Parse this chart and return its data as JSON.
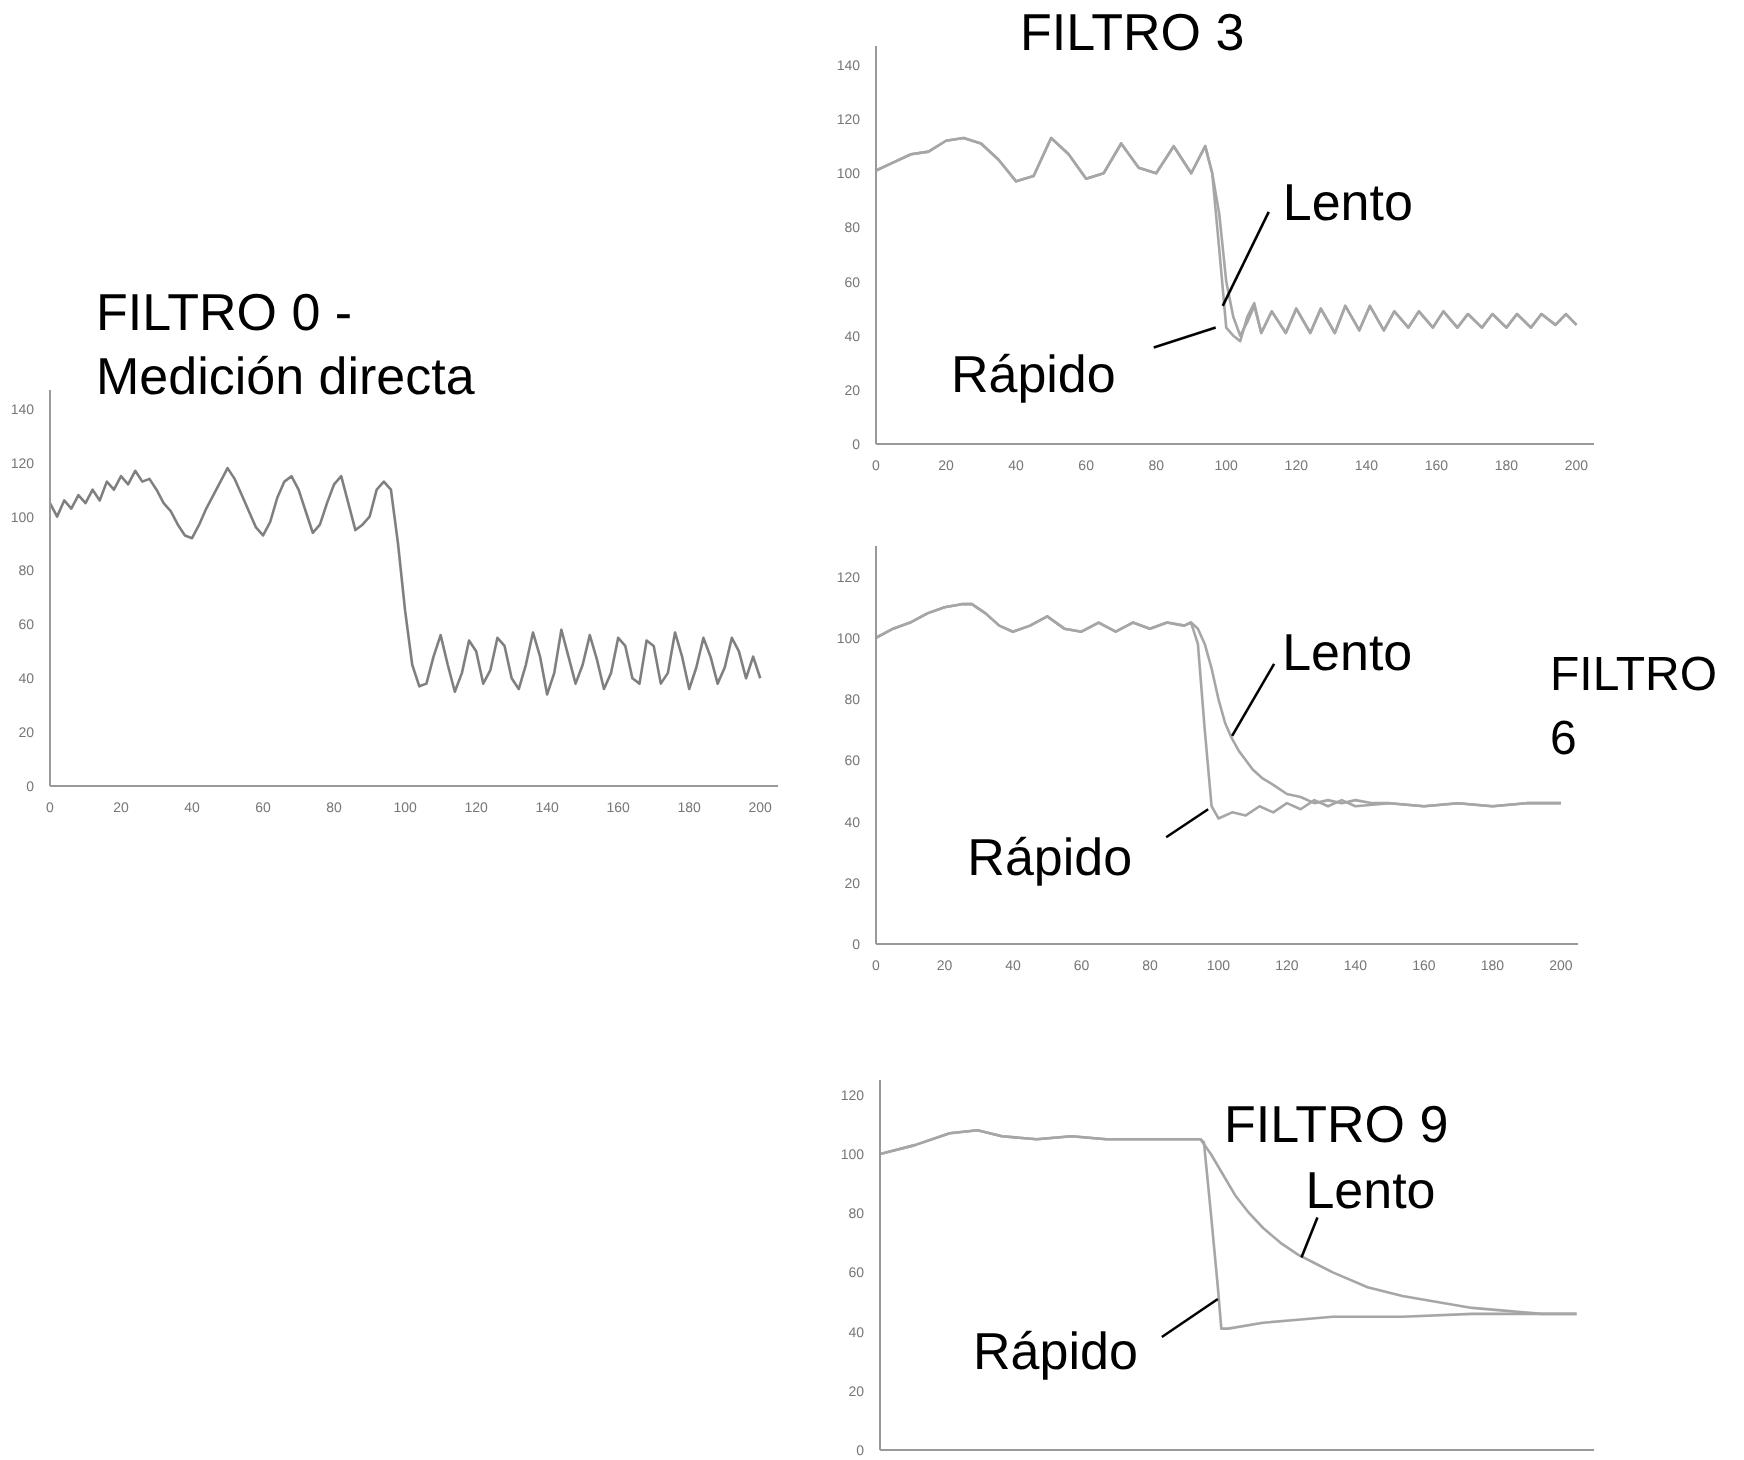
{
  "chart_data": [
    {
      "type": "line",
      "title": "FILTRO 0 - Medición directa",
      "xlim": [
        0,
        205
      ],
      "ylim": [
        0,
        147
      ],
      "xticks": [
        0,
        20,
        40,
        60,
        80,
        100,
        120,
        140,
        160,
        180,
        200
      ],
      "yticks": [
        0,
        20,
        40,
        60,
        80,
        100,
        120,
        140
      ],
      "series": [
        {
          "color": "#7f7f7f",
          "x": [
            0,
            2,
            4,
            6,
            8,
            10,
            12,
            14,
            16,
            18,
            20,
            22,
            24,
            26,
            28,
            30,
            32,
            34,
            36,
            38,
            40,
            42,
            44,
            46,
            48,
            50,
            52,
            54,
            56,
            58,
            60,
            62,
            64,
            66,
            68,
            70,
            72,
            74,
            76,
            78,
            80,
            82,
            84,
            86,
            88,
            90,
            92,
            94,
            96,
            98,
            100,
            102,
            104,
            106,
            108,
            110,
            112,
            114,
            116,
            118,
            120,
            122,
            124,
            126,
            128,
            130,
            132,
            134,
            136,
            138,
            140,
            142,
            144,
            146,
            148,
            150,
            152,
            154,
            156,
            158,
            160,
            162,
            164,
            166,
            168,
            170,
            172,
            174,
            176,
            178,
            180,
            182,
            184,
            186,
            188,
            190,
            192,
            194,
            196,
            198,
            200
          ],
          "values": [
            105,
            100,
            106,
            103,
            108,
            105,
            110,
            106,
            113,
            110,
            115,
            112,
            117,
            113,
            114,
            110,
            105,
            102,
            97,
            93,
            92,
            97,
            103,
            108,
            113,
            118,
            114,
            108,
            102,
            96,
            93,
            98,
            107,
            113,
            115,
            110,
            102,
            94,
            97,
            105,
            112,
            115,
            105,
            95,
            97,
            100,
            110,
            113,
            110,
            90,
            65,
            45,
            37,
            38,
            48,
            56,
            45,
            35,
            42,
            54,
            50,
            38,
            43,
            55,
            52,
            40,
            36,
            45,
            57,
            48,
            34,
            42,
            58,
            48,
            38,
            45,
            56,
            47,
            36,
            42,
            55,
            52,
            40,
            38,
            54,
            52,
            38,
            42,
            57,
            48,
            36,
            44,
            55,
            48,
            38,
            44,
            55,
            50,
            40,
            48,
            40
          ]
        }
      ]
    },
    {
      "type": "line",
      "title": "FILTRO 3",
      "xlim": [
        0,
        205
      ],
      "ylim": [
        0,
        147
      ],
      "xticks": [
        0,
        20,
        40,
        60,
        80,
        100,
        120,
        140,
        160,
        180,
        200
      ],
      "yticks": [
        0,
        20,
        40,
        60,
        80,
        100,
        120,
        140
      ],
      "annotations": [
        {
          "text": "Lento",
          "x": 99,
          "y": 51
        },
        {
          "text": "Rápido",
          "x": 97,
          "y": 43
        }
      ],
      "series": [
        {
          "color": "#a6a6a6",
          "x": [
            0,
            5,
            10,
            15,
            20,
            25,
            30,
            35,
            40,
            45,
            50,
            55,
            60,
            65,
            70,
            75,
            80,
            85,
            90,
            94,
            96,
            98,
            100,
            102,
            104,
            106,
            108,
            110,
            113,
            117,
            120,
            124,
            127,
            131,
            134,
            138,
            141,
            145,
            148,
            152,
            155,
            159,
            162,
            166,
            169,
            173,
            176,
            180,
            183,
            187,
            190,
            194,
            197,
            200
          ],
          "values": [
            101,
            104,
            107,
            108,
            112,
            113,
            111,
            105,
            97,
            99,
            113,
            107,
            98,
            100,
            111,
            102,
            100,
            110,
            100,
            110,
            100,
            85,
            60,
            47,
            40,
            45,
            51,
            41,
            49,
            41,
            50,
            41,
            50,
            41,
            51,
            42,
            51,
            42,
            49,
            43,
            49,
            43,
            49,
            43,
            48,
            43,
            48,
            43,
            48,
            43,
            48,
            44,
            48,
            44
          ]
        },
        {
          "color": "#a6a6a6",
          "x": [
            0,
            5,
            10,
            15,
            20,
            25,
            30,
            35,
            40,
            45,
            50,
            55,
            60,
            65,
            70,
            75,
            80,
            85,
            90,
            94,
            96,
            98,
            100,
            102,
            104,
            106,
            108,
            110,
            113,
            117,
            120,
            124,
            127,
            131,
            134,
            138,
            141,
            145,
            148,
            152,
            155,
            159,
            162,
            166,
            169,
            173,
            176,
            180,
            183,
            187,
            190,
            194,
            197,
            200
          ],
          "values": [
            101,
            104,
            107,
            108,
            112,
            113,
            111,
            105,
            97,
            99,
            113,
            107,
            98,
            100,
            111,
            102,
            100,
            110,
            100,
            110,
            100,
            72,
            43,
            40,
            38,
            47,
            52,
            41,
            49,
            41,
            50,
            41,
            50,
            41,
            51,
            42,
            51,
            42,
            49,
            43,
            49,
            43,
            49,
            43,
            48,
            43,
            48,
            43,
            48,
            43,
            48,
            44,
            48,
            44
          ]
        }
      ]
    },
    {
      "type": "line",
      "title": "FILTRO 6",
      "xlim": [
        0,
        205
      ],
      "ylim": [
        0,
        130
      ],
      "xticks": [
        0,
        20,
        40,
        60,
        80,
        100,
        120,
        140,
        160,
        180,
        200
      ],
      "yticks": [
        0,
        20,
        40,
        60,
        80,
        100,
        120
      ],
      "annotations": [
        {
          "text": "Lento",
          "x": 104,
          "y": 68
        },
        {
          "text": "Rápido",
          "x": 97,
          "y": 44
        }
      ],
      "series": [
        {
          "color": "#a6a6a6",
          "x": [
            0,
            5,
            10,
            15,
            20,
            25,
            28,
            32,
            36,
            40,
            45,
            50,
            55,
            60,
            65,
            70,
            75,
            80,
            85,
            90,
            92,
            94,
            96,
            98,
            100,
            102,
            104,
            106,
            108,
            110,
            113,
            116,
            120,
            124,
            128,
            132,
            136,
            140,
            145,
            150,
            160,
            170,
            180,
            190,
            200
          ],
          "values": [
            100,
            103,
            105,
            108,
            110,
            111,
            111,
            108,
            104,
            102,
            104,
            107,
            103,
            102,
            105,
            102,
            105,
            103,
            105,
            104,
            105,
            103,
            98,
            90,
            80,
            72,
            67,
            63,
            60,
            57,
            54,
            52,
            49,
            48,
            46,
            47,
            46,
            47,
            46,
            46,
            45,
            46,
            45,
            46,
            46
          ]
        },
        {
          "color": "#a6a6a6",
          "x": [
            0,
            5,
            10,
            15,
            20,
            25,
            28,
            32,
            36,
            40,
            45,
            50,
            55,
            60,
            65,
            70,
            75,
            80,
            85,
            90,
            92,
            94,
            96,
            98,
            100,
            104,
            108,
            112,
            116,
            120,
            124,
            128,
            132,
            136,
            140,
            150,
            160,
            170,
            180,
            190,
            200
          ],
          "values": [
            100,
            103,
            105,
            108,
            110,
            111,
            111,
            108,
            104,
            102,
            104,
            107,
            103,
            102,
            105,
            102,
            105,
            103,
            105,
            104,
            105,
            98,
            70,
            45,
            41,
            43,
            42,
            45,
            43,
            46,
            44,
            47,
            45,
            47,
            45,
            46,
            45,
            46,
            45,
            46,
            46
          ]
        }
      ]
    },
    {
      "type": "line",
      "title": "FILTRO 9",
      "xlim": [
        0,
        205
      ],
      "ylim": [
        0,
        125
      ],
      "yticks": [
        0,
        20,
        40,
        60,
        80,
        100,
        120
      ],
      "tick_labels": "y",
      "annotations": [
        {
          "text": "Lento",
          "x": 121,
          "y": 65
        },
        {
          "text": "Rápido",
          "x": 97,
          "y": 51
        }
      ],
      "series": [
        {
          "color": "#a6a6a6",
          "x": [
            0,
            10,
            20,
            28,
            35,
            45,
            55,
            65,
            75,
            85,
            92,
            95,
            98,
            102,
            106,
            110,
            115,
            120,
            125,
            130,
            140,
            150,
            160,
            170,
            180,
            190,
            200
          ],
          "values": [
            100,
            103,
            107,
            108,
            106,
            105,
            106,
            105,
            105,
            105,
            105,
            100,
            94,
            86,
            80,
            75,
            70,
            66,
            63,
            60,
            55,
            52,
            50,
            48,
            47,
            46,
            46
          ]
        },
        {
          "color": "#a6a6a6",
          "x": [
            0,
            10,
            20,
            28,
            35,
            45,
            55,
            65,
            75,
            85,
            92,
            93,
            95,
            97,
            98,
            100,
            110,
            120,
            130,
            150,
            170,
            200
          ],
          "values": [
            100,
            103,
            107,
            108,
            106,
            105,
            106,
            105,
            105,
            105,
            105,
            104,
            80,
            55,
            41,
            41,
            43,
            44,
            45,
            45,
            46,
            46
          ]
        }
      ]
    }
  ]
}
